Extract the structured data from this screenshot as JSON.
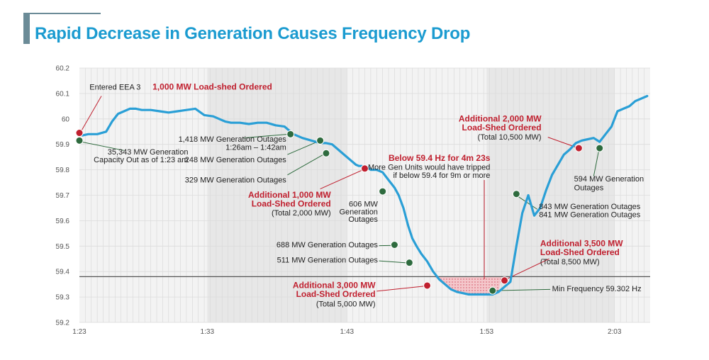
{
  "page": {
    "title": "Rapid Decrease in Generation Causes Frequency Drop"
  },
  "colors": {
    "title": "#1b9bd0",
    "line": "#2a9fd6",
    "red": "#c0202f",
    "green": "#2e6b3e"
  },
  "chart_data": {
    "type": "line",
    "title": "",
    "xlabel": "",
    "ylabel": "",
    "xlim": [
      0,
      96
    ],
    "ylim": [
      59.2,
      60.2
    ],
    "x_ticks": [
      {
        "value": 0,
        "label": "1:23"
      },
      {
        "value": 21.5,
        "label": "1:33"
      },
      {
        "value": 45,
        "label": "1:43"
      },
      {
        "value": 68.5,
        "label": "1:53"
      },
      {
        "value": 90,
        "label": "2:03"
      }
    ],
    "y_ticks": [
      {
        "value": 60.2,
        "label": "60.2"
      },
      {
        "value": 60.1,
        "label": "60.1"
      },
      {
        "value": 60.0,
        "label": "60"
      },
      {
        "value": 59.9,
        "label": "59.9"
      },
      {
        "value": 59.8,
        "label": "59.8"
      },
      {
        "value": 59.7,
        "label": "59.7"
      },
      {
        "value": 59.6,
        "label": "59.6"
      },
      {
        "value": 59.5,
        "label": "59.5"
      },
      {
        "value": 59.4,
        "label": "59.4"
      },
      {
        "value": 59.3,
        "label": "59.3"
      },
      {
        "value": 59.2,
        "label": "59.2"
      }
    ],
    "threshold": 59.38,
    "series": [
      {
        "x": [
          0,
          0.5,
          1.5,
          3,
          4.5,
          5.5,
          6.5,
          7.5,
          8.5,
          9.5,
          10.5,
          12,
          13.5,
          15,
          16.5,
          18,
          19.5,
          21,
          22.5,
          23.5,
          24.5,
          25.5,
          27,
          28.5,
          30,
          31.5,
          33,
          34.5,
          36,
          37.5,
          39,
          40.5,
          41.5,
          42.5,
          43.5,
          44.5,
          45.5,
          46.5,
          47,
          47.5,
          48,
          48.5,
          49,
          50,
          51,
          52,
          53,
          53.7,
          54.5,
          55.3,
          56,
          56.7,
          57.5,
          58.5,
          59.5,
          60.5,
          61.5,
          62.5,
          63.5,
          64.5,
          65.5,
          66.5,
          67.5,
          68.5,
          69.5,
          70.5,
          71.5,
          72.5,
          73.5,
          74.5,
          75.5,
          76.5,
          77.5,
          78.5,
          79.5,
          80.5,
          81.5,
          82.5,
          83.5,
          84.5,
          85.5,
          86.5,
          87.5,
          88.5,
          89.5,
          90.5,
          91.5,
          92.5,
          93.5,
          94.5,
          95.5
        ],
        "y": [
          59.95,
          59.935,
          59.94,
          59.94,
          59.95,
          59.99,
          60.02,
          60.03,
          60.04,
          60.04,
          60.035,
          60.035,
          60.03,
          60.025,
          60.03,
          60.035,
          60.04,
          60.015,
          60.01,
          60.0,
          59.99,
          59.985,
          59.985,
          59.98,
          59.985,
          59.985,
          59.975,
          59.97,
          59.94,
          59.925,
          59.915,
          59.905,
          59.905,
          59.9,
          59.88,
          59.86,
          59.84,
          59.82,
          59.815,
          59.815,
          59.81,
          59.81,
          59.8,
          59.8,
          59.79,
          59.76,
          59.73,
          59.7,
          59.65,
          59.58,
          59.53,
          59.5,
          59.47,
          59.44,
          59.4,
          59.37,
          59.35,
          59.33,
          59.32,
          59.315,
          59.31,
          59.31,
          59.31,
          59.31,
          59.31,
          59.32,
          59.34,
          59.36,
          59.5,
          59.63,
          59.7,
          59.62,
          59.65,
          59.72,
          59.78,
          59.82,
          59.86,
          59.88,
          59.905,
          59.915,
          59.92,
          59.925,
          59.91,
          59.94,
          59.97,
          60.03,
          60.04,
          60.05,
          60.07,
          60.08,
          60.09
        ]
      }
    ],
    "markers": [
      {
        "x": 0,
        "y": 59.945,
        "type": "red"
      },
      {
        "x": 0,
        "y": 59.915,
        "type": "green"
      },
      {
        "x": 35.5,
        "y": 59.94,
        "type": "green"
      },
      {
        "x": 40.5,
        "y": 59.915,
        "type": "green"
      },
      {
        "x": 41.5,
        "y": 59.865,
        "type": "green"
      },
      {
        "x": 48,
        "y": 59.805,
        "type": "red"
      },
      {
        "x": 51,
        "y": 59.715,
        "type": "green"
      },
      {
        "x": 53,
        "y": 59.505,
        "type": "green"
      },
      {
        "x": 55.5,
        "y": 59.435,
        "type": "green"
      },
      {
        "x": 58.5,
        "y": 59.345,
        "type": "red"
      },
      {
        "x": 69.5,
        "y": 59.325,
        "type": "green"
      },
      {
        "x": 71.5,
        "y": 59.365,
        "type": "red"
      },
      {
        "x": 73.5,
        "y": 59.705,
        "type": "green"
      },
      {
        "x": 84,
        "y": 59.885,
        "type": "red"
      },
      {
        "x": 87.5,
        "y": 59.885,
        "type": "green"
      }
    ],
    "shaded_region": {
      "x_start": 58.5,
      "x_end": 71,
      "y_top": 59.38
    },
    "annotations": [
      {
        "id": "eea3",
        "text": "Entered EEA 3",
        "x": 1.7,
        "y": 60.115,
        "anchor": "start",
        "style": "normal"
      },
      {
        "id": "loadshed-1000",
        "text": "1,000 MW Load-shed Ordered",
        "x": 12.3,
        "y": 60.115,
        "anchor": "start",
        "style": "red"
      },
      {
        "id": "gen-35343-a",
        "text": "35,343 MW Generation",
        "x": 18.3,
        "y": 59.86,
        "anchor": "end",
        "style": "normal"
      },
      {
        "id": "gen-35343-b",
        "text": "Capacity Out as of 1:23 am",
        "x": 18.3,
        "y": 59.83,
        "anchor": "end",
        "style": "normal"
      },
      {
        "id": "gen-1418-a",
        "text": "1,418 MW Generation Outages",
        "x": 34.8,
        "y": 59.91,
        "anchor": "end",
        "style": "normal"
      },
      {
        "id": "gen-1418-b",
        "text": "1:26am – 1:42am",
        "x": 34.8,
        "y": 59.878,
        "anchor": "end",
        "style": "normal"
      },
      {
        "id": "gen-248",
        "text": "248 MW Generation Outages",
        "x": 34.8,
        "y": 59.83,
        "anchor": "end",
        "style": "normal"
      },
      {
        "id": "gen-329",
        "text": "329 MW Generation Outages",
        "x": 34.8,
        "y": 59.75,
        "anchor": "end",
        "style": "normal"
      },
      {
        "id": "add-1000-a",
        "text": "Additional 1,000 MW",
        "x": 42.3,
        "y": 59.69,
        "anchor": "end",
        "style": "red"
      },
      {
        "id": "add-1000-b",
        "text": "Load-Shed Ordered",
        "x": 42.3,
        "y": 59.655,
        "anchor": "end",
        "style": "red"
      },
      {
        "id": "add-1000-c",
        "text": "(Total 2,000 MW)",
        "x": 42.3,
        "y": 59.62,
        "anchor": "end",
        "style": "normal"
      },
      {
        "id": "gen-606-a",
        "text": "606 MW",
        "x": 50.2,
        "y": 59.655,
        "anchor": "end",
        "style": "normal"
      },
      {
        "id": "gen-606-b",
        "text": "Generation",
        "x": 50.2,
        "y": 59.625,
        "anchor": "end",
        "style": "normal"
      },
      {
        "id": "gen-606-c",
        "text": "Outages",
        "x": 50.2,
        "y": 59.595,
        "anchor": "end",
        "style": "normal"
      },
      {
        "id": "gen-688",
        "text": "688 MW Generation Outages",
        "x": 50.2,
        "y": 59.495,
        "anchor": "end",
        "style": "normal"
      },
      {
        "id": "gen-511",
        "text": "511 MW Generation Outages",
        "x": 50.2,
        "y": 59.435,
        "anchor": "end",
        "style": "normal"
      },
      {
        "id": "add-3000-a",
        "text": "Additional 3,000 MW",
        "x": 49.8,
        "y": 59.335,
        "anchor": "end",
        "style": "red"
      },
      {
        "id": "add-3000-b",
        "text": "Load-Shed Ordered",
        "x": 49.8,
        "y": 59.3,
        "anchor": "end",
        "style": "red"
      },
      {
        "id": "add-3000-c",
        "text": "(Total 5,000 MW)",
        "x": 49.8,
        "y": 59.263,
        "anchor": "end",
        "style": "normal"
      },
      {
        "id": "below594-a",
        "text": "Below 59.4 Hz for 4m 23s",
        "x": 69.1,
        "y": 59.835,
        "anchor": "end",
        "style": "red"
      },
      {
        "id": "below594-b",
        "text": "More Gen Units would have tripped",
        "x": 69.1,
        "y": 59.8,
        "anchor": "end",
        "style": "normal"
      },
      {
        "id": "below594-c",
        "text": "if below 59.4 for 9m or more",
        "x": 69.1,
        "y": 59.768,
        "anchor": "end",
        "style": "normal"
      },
      {
        "id": "add-2000-a",
        "text": "Additional 2,000 MW",
        "x": 77.7,
        "y": 59.99,
        "anchor": "end",
        "style": "red"
      },
      {
        "id": "add-2000-b",
        "text": "Load-Shed Ordered",
        "x": 77.7,
        "y": 59.955,
        "anchor": "end",
        "style": "red"
      },
      {
        "id": "add-2000-c",
        "text": "(Total 10,500 MW)",
        "x": 77.7,
        "y": 59.918,
        "anchor": "end",
        "style": "normal"
      },
      {
        "id": "gen-594-a",
        "text": "594 MW Generation",
        "x": 83.2,
        "y": 59.755,
        "anchor": "start",
        "style": "normal"
      },
      {
        "id": "gen-594-b",
        "text": "Outages",
        "x": 83.2,
        "y": 59.72,
        "anchor": "start",
        "style": "normal"
      },
      {
        "id": "gen-843",
        "text": "843 MW Generation Outages",
        "x": 77.3,
        "y": 59.645,
        "anchor": "start",
        "style": "normal"
      },
      {
        "id": "gen-841",
        "text": "841 MW Generation Outages",
        "x": 77.3,
        "y": 59.613,
        "anchor": "start",
        "style": "normal"
      },
      {
        "id": "add-3500-a",
        "text": "Additional 3,500 MW",
        "x": 77.5,
        "y": 59.5,
        "anchor": "start",
        "style": "red"
      },
      {
        "id": "add-3500-b",
        "text": "Load-Shed Ordered",
        "x": 77.5,
        "y": 59.465,
        "anchor": "start",
        "style": "red"
      },
      {
        "id": "add-3500-c",
        "text": "(Total 8,500 MW)",
        "x": 77.5,
        "y": 59.428,
        "anchor": "start",
        "style": "normal"
      },
      {
        "id": "min-freq",
        "text": "Min Frequency 59.302 Hz",
        "x": 79.5,
        "y": 59.323,
        "anchor": "start",
        "style": "normal"
      }
    ],
    "connectors": [
      {
        "from": [
          0.2,
          59.948
        ],
        "to": [
          3.7,
          60.09
        ],
        "color": "red"
      },
      {
        "from": [
          0.3,
          59.91
        ],
        "to": [
          7.5,
          59.876
        ],
        "color": "green"
      },
      {
        "from": [
          35.2,
          59.94
        ],
        "to": [
          27.5,
          59.925
        ],
        "color": "green"
      },
      {
        "from": [
          40.3,
          59.913
        ],
        "to": [
          35,
          59.86
        ],
        "color": "green"
      },
      {
        "from": [
          41.2,
          59.862
        ],
        "to": [
          35,
          59.78
        ],
        "color": "green"
      },
      {
        "from": [
          47.7,
          59.8
        ],
        "to": [
          40.5,
          59.725
        ],
        "color": "red"
      },
      {
        "from": [
          53.1,
          59.503
        ],
        "to": [
          50.4,
          59.502
        ],
        "color": "green"
      },
      {
        "from": [
          55.2,
          59.434
        ],
        "to": [
          50.4,
          59.442
        ],
        "color": "green"
      },
      {
        "from": [
          58.2,
          59.343
        ],
        "to": [
          50,
          59.323
        ],
        "color": "red"
      },
      {
        "from": [
          69.8,
          59.325
        ],
        "to": [
          79.2,
          59.33
        ],
        "color": "green"
      },
      {
        "from": [
          71.8,
          59.37
        ],
        "to": [
          79,
          59.45
        ],
        "color": "red"
      },
      {
        "from": [
          73.8,
          59.695
        ],
        "to": [
          77,
          59.645
        ],
        "color": "green"
      },
      {
        "from": [
          83.6,
          59.888
        ],
        "to": [
          78.8,
          59.928
        ],
        "color": "red"
      },
      {
        "from": [
          87.4,
          59.88
        ],
        "to": [
          86.5,
          59.775
        ],
        "color": "green"
      },
      {
        "from": [
          68.1,
          59.76
        ],
        "to": [
          68.1,
          59.37
        ],
        "color": "red"
      }
    ]
  }
}
